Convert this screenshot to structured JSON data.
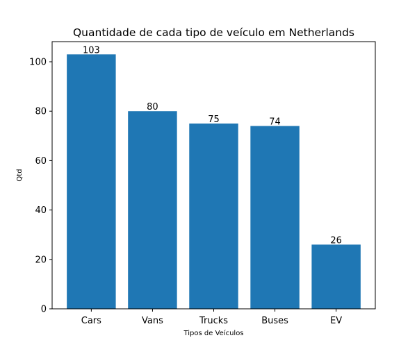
{
  "chart_data": {
    "type": "bar",
    "title": "Quantidade de cada tipo de veículo em Netherlands",
    "xlabel": "Tipos de Veículos",
    "ylabel": "Qtd",
    "categories": [
      "Cars",
      "Vans",
      "Trucks",
      "Buses",
      "EV"
    ],
    "values": [
      103,
      80,
      75,
      74,
      26
    ],
    "ylim": [
      0,
      108.15
    ],
    "yticks": [
      0,
      20,
      40,
      60,
      80,
      100
    ],
    "bar_color": "#1f77b4",
    "grid": false,
    "legend": "none"
  }
}
